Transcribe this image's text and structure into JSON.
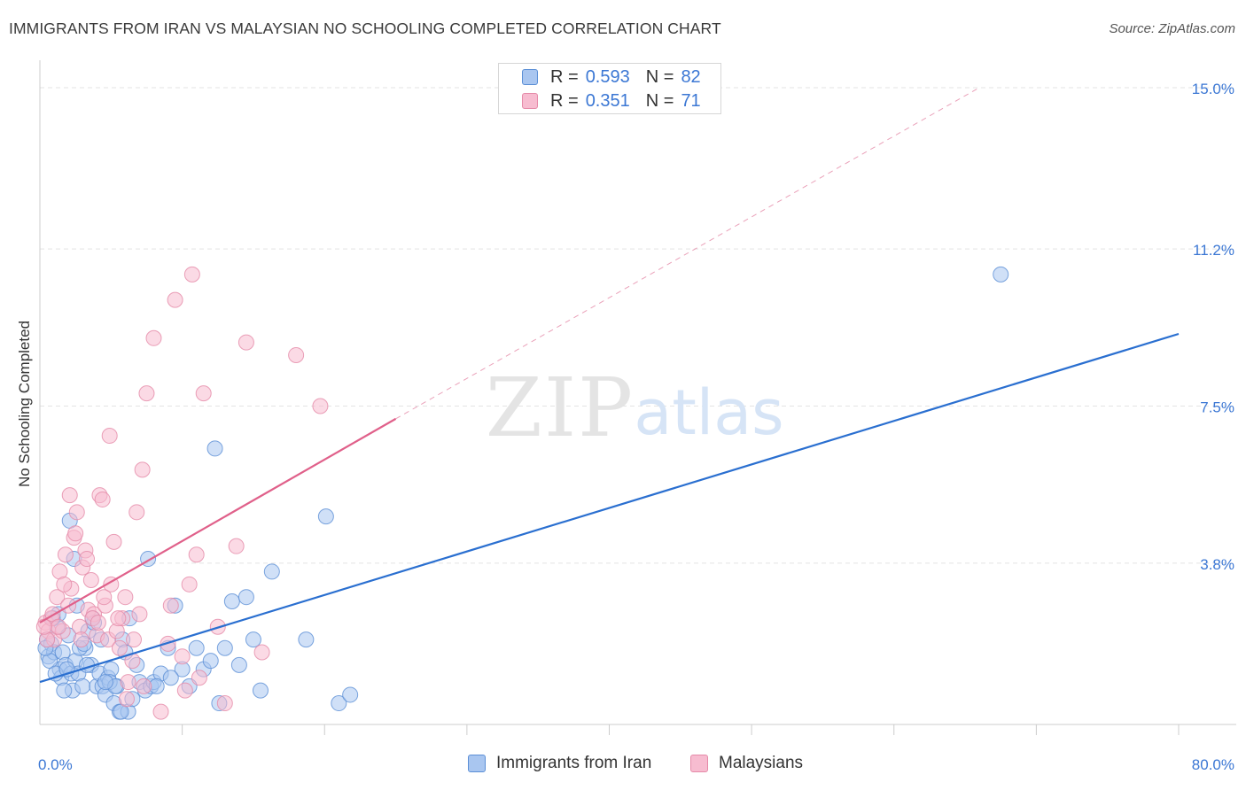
{
  "title": "IMMIGRANTS FROM IRAN VS MALAYSIAN NO SCHOOLING COMPLETED CORRELATION CHART",
  "source": "Source: ZipAtlas.com",
  "watermark": {
    "zip": "ZIP",
    "atlas": "atlas"
  },
  "legend": {
    "series": [
      {
        "r_label": "R =",
        "r_value": "0.593",
        "n_label": "N =",
        "n_value": "82"
      },
      {
        "r_label": "R =",
        "r_value": "0.351",
        "n_label": "N =",
        "n_value": "71"
      }
    ]
  },
  "colors": {
    "blue_fill": "#a9c6f0",
    "blue_stroke": "#5b8fd6",
    "blue_line": "#2a6fd0",
    "pink_fill": "#f7bcd0",
    "pink_stroke": "#e58aa8",
    "pink_line": "#e0608a",
    "tick_label": "#3b77d4",
    "grid": "#e3e3e3"
  },
  "chart_data": {
    "type": "scatter",
    "title": "IMMIGRANTS FROM IRAN VS MALAYSIAN NO SCHOOLING COMPLETED CORRELATION CHART",
    "xlabel": "",
    "ylabel": "No Schooling Completed",
    "xlim": [
      0,
      80
    ],
    "ylim": [
      0,
      15.5
    ],
    "x_tick_labels": [
      "0.0%",
      "80.0%"
    ],
    "y_ticks": [
      3.8,
      7.5,
      11.2,
      15.0
    ],
    "y_tick_labels": [
      "3.8%",
      "7.5%",
      "11.2%",
      "15.0%"
    ],
    "series": [
      {
        "name": "Immigrants from Iran",
        "r": 0.593,
        "n": 82,
        "trend": {
          "x0": 0,
          "y0": 1.0,
          "x1": 80,
          "y1": 9.2
        },
        "points": [
          [
            0.5,
            2.0
          ],
          [
            0.6,
            1.6
          ],
          [
            0.8,
            1.9
          ],
          [
            1.0,
            1.7
          ],
          [
            1.2,
            2.3
          ],
          [
            1.4,
            1.3
          ],
          [
            1.5,
            1.1
          ],
          [
            1.6,
            1.7
          ],
          [
            1.8,
            1.4
          ],
          [
            2.0,
            2.1
          ],
          [
            2.2,
            1.2
          ],
          [
            2.3,
            0.8
          ],
          [
            2.5,
            1.5
          ],
          [
            2.7,
            1.2
          ],
          [
            3.0,
            0.9
          ],
          [
            3.2,
            1.8
          ],
          [
            3.4,
            2.2
          ],
          [
            3.6,
            1.4
          ],
          [
            3.8,
            2.4
          ],
          [
            4.0,
            0.9
          ],
          [
            4.2,
            1.2
          ],
          [
            4.4,
            0.9
          ],
          [
            4.6,
            0.7
          ],
          [
            4.8,
            1.1
          ],
          [
            5.0,
            1.3
          ],
          [
            5.2,
            0.5
          ],
          [
            5.4,
            0.9
          ],
          [
            5.6,
            0.3
          ],
          [
            5.8,
            2.0
          ],
          [
            6.0,
            1.7
          ],
          [
            6.2,
            0.3
          ],
          [
            6.5,
            0.6
          ],
          [
            7.0,
            1.0
          ],
          [
            7.4,
            0.8
          ],
          [
            7.8,
            0.9
          ],
          [
            8.0,
            1.0
          ],
          [
            8.5,
            1.2
          ],
          [
            9.0,
            1.8
          ],
          [
            9.5,
            2.8
          ],
          [
            10.0,
            1.3
          ],
          [
            10.5,
            0.9
          ],
          [
            11.0,
            1.8
          ],
          [
            11.5,
            1.3
          ],
          [
            12.0,
            1.5
          ],
          [
            12.3,
            6.5
          ],
          [
            12.6,
            0.5
          ],
          [
            13.0,
            1.8
          ],
          [
            13.5,
            2.9
          ],
          [
            14.0,
            1.4
          ],
          [
            14.5,
            3.0
          ],
          [
            15.0,
            2.0
          ],
          [
            15.5,
            0.8
          ],
          [
            16.3,
            3.6
          ],
          [
            18.7,
            2.0
          ],
          [
            20.1,
            4.9
          ],
          [
            21.0,
            0.5
          ],
          [
            21.8,
            0.7
          ],
          [
            0.7,
            1.5
          ],
          [
            1.3,
            2.6
          ],
          [
            2.8,
            1.8
          ],
          [
            3.3,
            1.4
          ],
          [
            4.3,
            2.0
          ],
          [
            4.9,
            1.0
          ],
          [
            5.3,
            0.9
          ],
          [
            6.8,
            1.4
          ],
          [
            8.2,
            0.9
          ],
          [
            1.1,
            1.2
          ],
          [
            0.9,
            2.5
          ],
          [
            2.4,
            3.9
          ],
          [
            2.1,
            4.8
          ],
          [
            6.3,
            2.5
          ],
          [
            7.6,
            3.9
          ],
          [
            9.2,
            1.1
          ],
          [
            3.7,
            2.5
          ],
          [
            4.6,
            1.0
          ],
          [
            5.7,
            0.3
          ],
          [
            1.9,
            1.3
          ],
          [
            2.6,
            2.8
          ],
          [
            67.5,
            10.6
          ],
          [
            0.4,
            1.8
          ],
          [
            1.7,
            0.8
          ],
          [
            3.1,
            1.9
          ]
        ]
      },
      {
        "name": "Malaysians",
        "r": 0.351,
        "n": 71,
        "trend": {
          "x0": 0,
          "y0": 2.4,
          "x1": 25,
          "y1": 7.2
        },
        "trend_ext": {
          "x0": 25,
          "y0": 7.2,
          "x1": 66,
          "y1": 15.0
        },
        "points": [
          [
            0.4,
            2.4
          ],
          [
            0.6,
            2.2
          ],
          [
            0.8,
            2.5
          ],
          [
            1.0,
            2.0
          ],
          [
            1.2,
            3.0
          ],
          [
            1.4,
            3.6
          ],
          [
            1.6,
            2.2
          ],
          [
            1.8,
            4.0
          ],
          [
            2.0,
            2.8
          ],
          [
            2.2,
            3.2
          ],
          [
            2.4,
            4.4
          ],
          [
            2.6,
            5.0
          ],
          [
            2.8,
            2.3
          ],
          [
            3.0,
            3.7
          ],
          [
            3.2,
            4.1
          ],
          [
            3.4,
            2.7
          ],
          [
            3.6,
            3.4
          ],
          [
            3.8,
            2.6
          ],
          [
            4.0,
            2.1
          ],
          [
            4.2,
            5.4
          ],
          [
            4.4,
            5.3
          ],
          [
            4.6,
            2.8
          ],
          [
            4.8,
            2.0
          ],
          [
            5.0,
            3.3
          ],
          [
            5.2,
            4.3
          ],
          [
            5.4,
            2.2
          ],
          [
            5.6,
            1.8
          ],
          [
            5.8,
            2.5
          ],
          [
            6.0,
            3.0
          ],
          [
            6.2,
            1.0
          ],
          [
            6.5,
            1.5
          ],
          [
            6.8,
            5.0
          ],
          [
            7.0,
            2.6
          ],
          [
            7.2,
            6.0
          ],
          [
            7.5,
            7.8
          ],
          [
            8.0,
            9.1
          ],
          [
            8.5,
            0.3
          ],
          [
            9.0,
            1.9
          ],
          [
            9.5,
            10.0
          ],
          [
            10.0,
            1.6
          ],
          [
            10.5,
            3.3
          ],
          [
            10.7,
            10.6
          ],
          [
            11.0,
            4.0
          ],
          [
            11.5,
            7.8
          ],
          [
            12.5,
            2.3
          ],
          [
            13.0,
            0.5
          ],
          [
            13.8,
            4.2
          ],
          [
            14.5,
            9.0
          ],
          [
            15.6,
            1.7
          ],
          [
            18.0,
            8.7
          ],
          [
            19.7,
            7.5
          ],
          [
            0.5,
            2.0
          ],
          [
            0.9,
            2.6
          ],
          [
            1.3,
            2.3
          ],
          [
            1.7,
            3.3
          ],
          [
            2.1,
            5.4
          ],
          [
            2.5,
            4.5
          ],
          [
            2.9,
            2.0
          ],
          [
            3.3,
            3.9
          ],
          [
            3.7,
            2.5
          ],
          [
            4.1,
            2.4
          ],
          [
            4.5,
            3.0
          ],
          [
            4.9,
            6.8
          ],
          [
            5.5,
            2.5
          ],
          [
            6.1,
            0.6
          ],
          [
            6.6,
            2.0
          ],
          [
            7.3,
            0.9
          ],
          [
            9.2,
            2.8
          ],
          [
            10.2,
            0.8
          ],
          [
            11.2,
            1.1
          ],
          [
            0.3,
            2.3
          ]
        ]
      }
    ],
    "legend": [
      "Immigrants from Iran",
      "Malaysians"
    ]
  }
}
